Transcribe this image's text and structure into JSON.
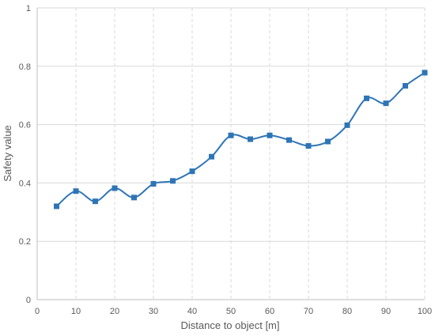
{
  "chart_data": {
    "type": "line",
    "title": "",
    "xlabel": "Distance to object [m]",
    "ylabel": "Safety value",
    "xlim": [
      0,
      100
    ],
    "ylim": [
      0,
      1
    ],
    "x_ticks": [
      0,
      10,
      20,
      30,
      40,
      50,
      60,
      70,
      80,
      90,
      100
    ],
    "y_ticks": [
      0,
      0.2,
      0.4,
      0.6,
      0.8,
      1
    ],
    "x_tick_labels": [
      "0",
      "10",
      "20",
      "30",
      "40",
      "50",
      "60",
      "70",
      "80",
      "90",
      "100"
    ],
    "y_tick_labels": [
      "0",
      "0.2",
      "0.4",
      "0.6",
      "0.8",
      "1"
    ],
    "grid": {
      "vertical": "dashed",
      "horizontal": "solid"
    },
    "legend": "none",
    "smooth": true,
    "marker": "square",
    "color": "#2e75b6",
    "series": [
      {
        "x": [
          5,
          10,
          15,
          20,
          25,
          30,
          35,
          40,
          45,
          50,
          55,
          60,
          65,
          70,
          75,
          80,
          85,
          90,
          95,
          100
        ],
        "y": [
          0.32,
          0.372,
          0.337,
          0.382,
          0.35,
          0.397,
          0.407,
          0.44,
          0.49,
          0.563,
          0.55,
          0.563,
          0.547,
          0.527,
          0.542,
          0.598,
          0.69,
          0.673,
          0.733,
          0.778
        ]
      }
    ]
  }
}
